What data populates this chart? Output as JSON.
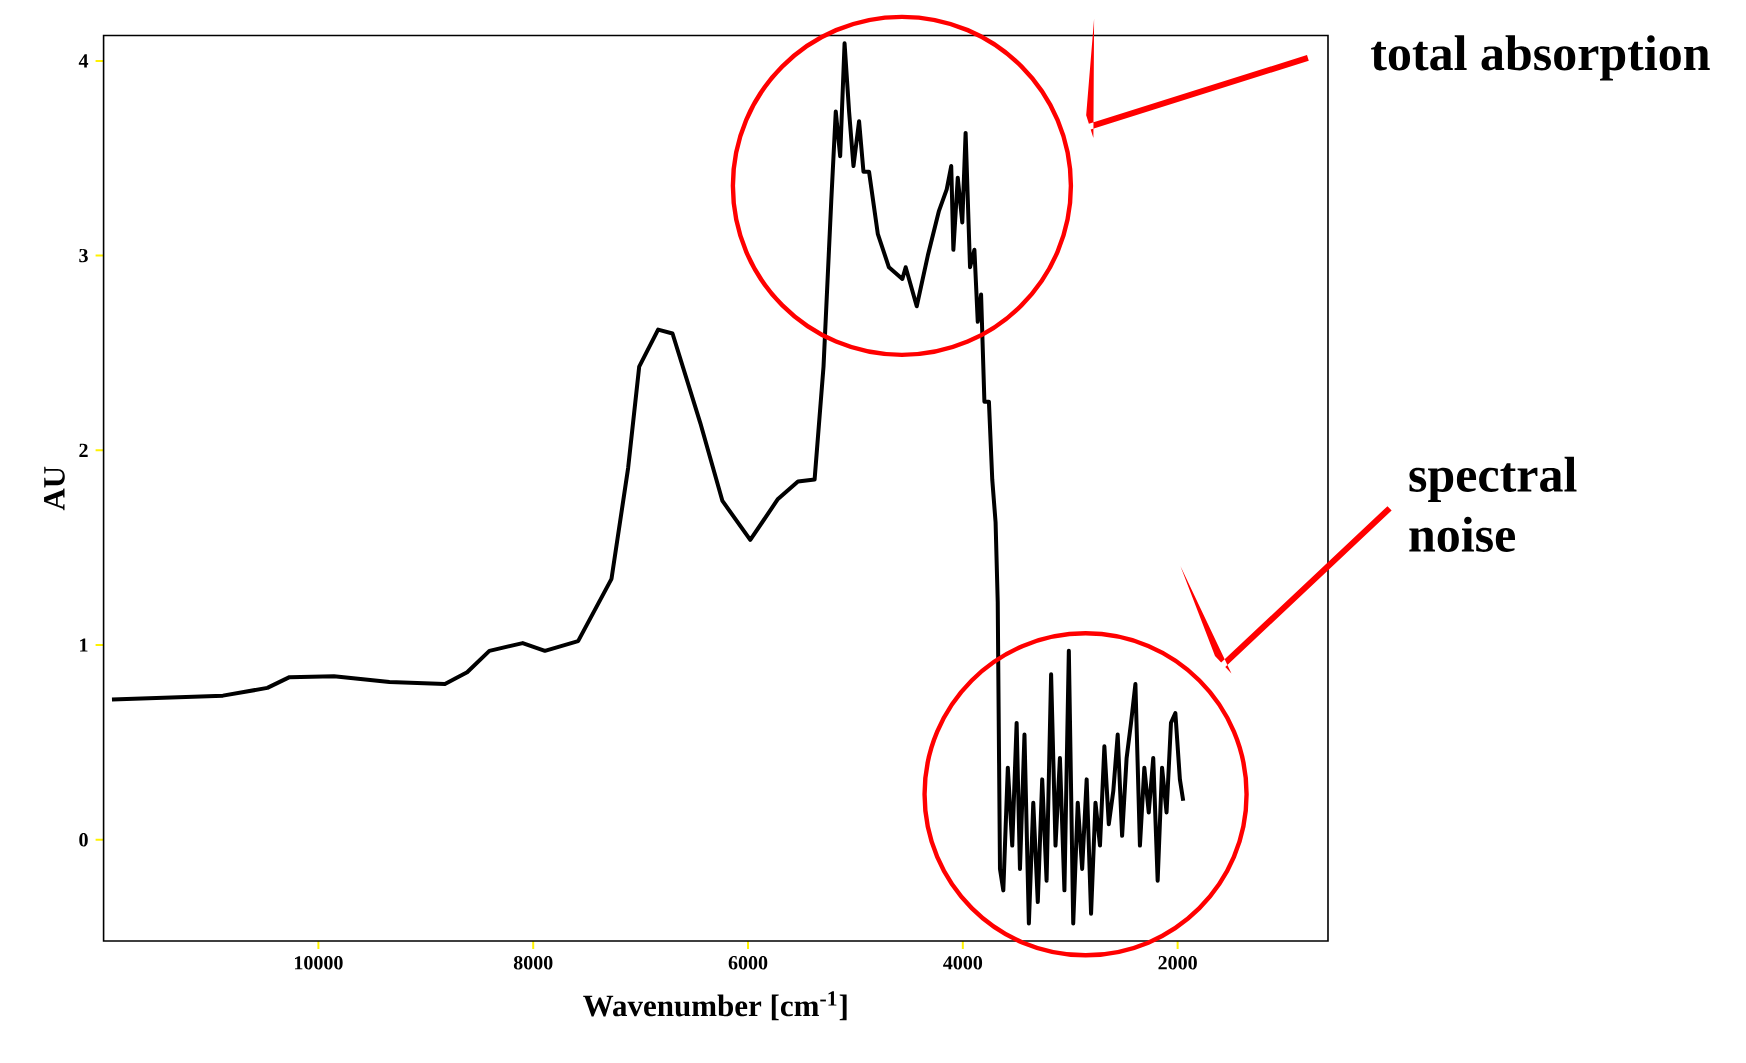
{
  "chart_data": {
    "type": "line",
    "xlabel": "Wavenumber [cm$^{-1}$]",
    "ylabel": "AU",
    "xlim": [
      12000,
      600
    ],
    "ylim": [
      -0.52,
      4.13
    ],
    "xticks": [
      10000,
      8000,
      6000,
      4000,
      2000
    ],
    "yticks": [
      0,
      1,
      2,
      3,
      4
    ],
    "grid": false,
    "marker": "none",
    "line_style": "solid",
    "color": "#000000",
    "x": [
      11922,
      10889,
      10475,
      10269,
      9855,
      9338,
      8822,
      8615,
      8408,
      8098,
      7891,
      7582,
      7271,
      7116,
      7013,
      6837,
      6703,
      6444,
      6238,
      5979,
      5721,
      5535,
      5380,
      5297,
      5225,
      5183,
      5142,
      5101,
      5059,
      5018,
      4966,
      4925,
      4873,
      4791,
      4688,
      4563,
      4532,
      4429,
      4326,
      4222,
      4150,
      4108,
      4088,
      4047,
      4005,
      3974,
      3933,
      3892,
      3861,
      3830,
      3799,
      3757,
      3726,
      3695,
      3675,
      3654,
      3623,
      3581,
      3540,
      3499,
      3468,
      3426,
      3385,
      3344,
      3302,
      3261,
      3220,
      3178,
      3137,
      3096,
      3054,
      3013,
      2972,
      2930,
      2889,
      2847,
      2806,
      2765,
      2723,
      2682,
      2641,
      2599,
      2558,
      2517,
      2475,
      2434,
      2393,
      2351,
      2310,
      2269,
      2227,
      2186,
      2145,
      2103,
      2062,
      2021,
      1979,
      1948
    ],
    "values": [
      0.72,
      0.74,
      0.78,
      0.835,
      0.84,
      0.81,
      0.8,
      0.86,
      0.97,
      1.01,
      0.97,
      1.02,
      1.34,
      1.91,
      2.43,
      2.62,
      2.6,
      2.14,
      1.74,
      1.54,
      1.75,
      1.84,
      1.85,
      2.43,
      3.28,
      3.74,
      3.51,
      4.09,
      3.74,
      3.46,
      3.69,
      3.43,
      3.43,
      3.11,
      2.94,
      2.88,
      2.94,
      2.74,
      3.0,
      3.23,
      3.34,
      3.46,
      3.03,
      3.4,
      3.17,
      3.63,
      2.94,
      3.03,
      2.66,
      2.8,
      2.25,
      2.25,
      1.85,
      1.63,
      1.22,
      -0.15,
      -0.26,
      0.37,
      -0.03,
      0.6,
      -0.15,
      0.54,
      -0.43,
      0.19,
      -0.32,
      0.31,
      -0.21,
      0.85,
      -0.03,
      0.42,
      -0.26,
      0.97,
      -0.43,
      0.19,
      -0.15,
      0.31,
      -0.38,
      0.19,
      -0.03,
      0.48,
      0.08,
      0.25,
      0.54,
      0.02,
      0.42,
      0.6,
      0.8,
      -0.03,
      0.37,
      0.14,
      0.42,
      -0.21,
      0.37,
      0.14,
      0.6,
      0.65,
      0.31,
      0.2
    ],
    "annotations": [
      "total absorption",
      "spectral noise"
    ]
  }
}
